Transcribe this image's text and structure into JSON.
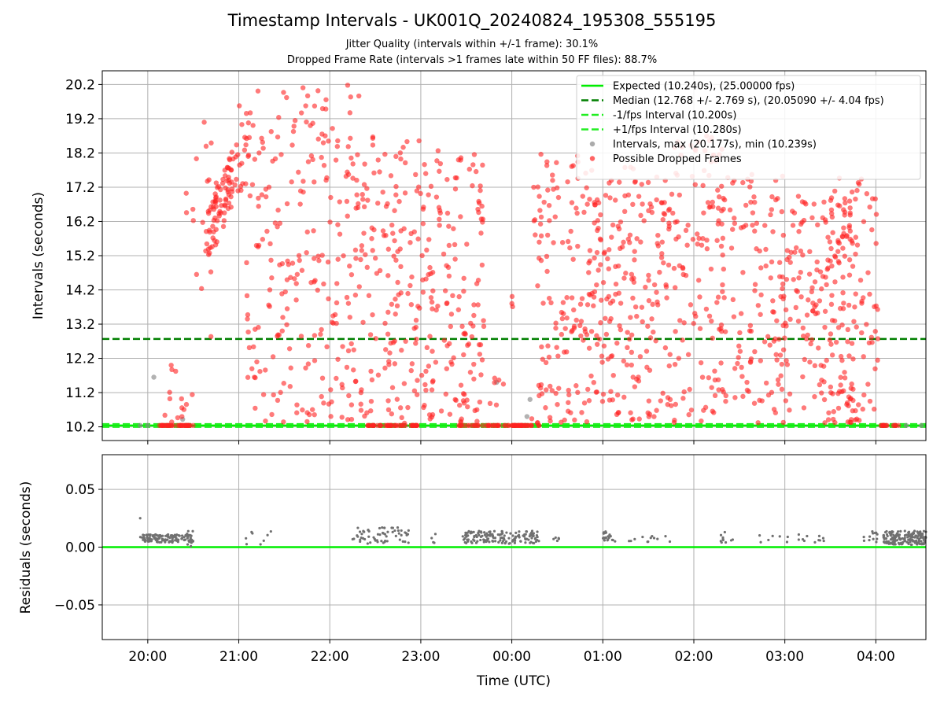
{
  "figure": {
    "title": "Timestamp Intervals - UK001Q_20240824_195308_555195",
    "subtitle_jitter": "Jitter Quality (intervals within +/-1 frame): 30.1%",
    "subtitle_dropped": "Dropped Frame Rate (intervals >1 frames late within 50 FF files): 88.7%"
  },
  "colors": {
    "expected": "#00ee00",
    "median": "#007f00",
    "fps_band": "#22ee22",
    "intervals": "#888888",
    "dropped": "#ff2222",
    "residuals": "#707070",
    "grid": "#b0b0b0"
  },
  "chart_data": [
    {
      "type": "scatter",
      "panel": "top",
      "xlabel": "",
      "ylabel": "Intervals (seconds)",
      "ylim": [
        9.8,
        20.6
      ],
      "yticks": [
        10.2,
        11.2,
        12.2,
        13.2,
        14.2,
        15.2,
        16.2,
        17.2,
        18.2,
        19.2,
        20.2
      ],
      "ytick_labels": [
        "10.2",
        "11.2",
        "12.2",
        "13.2",
        "14.2",
        "15.2",
        "16.2",
        "17.2",
        "18.2",
        "19.2",
        "20.2"
      ],
      "grid": true,
      "legend_position": "top-right",
      "hlines": [
        {
          "name": "Expected (10.240s), (25.00000 fps)",
          "y": 10.24,
          "style": "solid",
          "color": "#00ee00"
        },
        {
          "name": "Median (12.768 +/- 2.769 s), (20.05090 +/- 4.04 fps)",
          "y": 12.768,
          "style": "dashed",
          "color": "#007f00"
        },
        {
          "name": "-1/fps Interval (10.200s)",
          "y": 10.2,
          "style": "dashed",
          "color": "#22ee22"
        },
        {
          "name": "+1/fps Interval (10.280s)",
          "y": 10.28,
          "style": "dashed",
          "color": "#22ee22"
        }
      ],
      "series": [
        {
          "name": "Intervals, max (20.177s), min (10.239s)",
          "marker": "dot",
          "color": "#888888",
          "points": [
            [
              "19:55",
              10.24
            ],
            [
              "20:00",
              10.24
            ],
            [
              "20:04",
              11.65
            ],
            [
              "20:23",
              10.42
            ],
            [
              "23:50",
              11.5
            ],
            [
              "00:10",
              10.5
            ],
            [
              "00:12",
              11.0
            ],
            [
              "04:20",
              10.24
            ],
            [
              "04:30",
              10.24
            ]
          ]
        },
        {
          "name": "Possible Dropped Frames",
          "marker": "dot",
          "color": "#ff2222",
          "segments": [
            {
              "start": "20:05",
              "end": "20:30",
              "density": 34,
              "distribution": "flat",
              "ymin": 10.24,
              "ymax": 10.24
            },
            {
              "start": "20:05",
              "end": "20:30",
              "density": 14,
              "distribution": "uniform",
              "ymin": 10.3,
              "ymax": 12.1
            },
            {
              "start": "20:25",
              "end": "20:50",
              "density": 20,
              "distribution": "uniform",
              "ymin": 12.8,
              "ymax": 19.4
            },
            {
              "start": "20:38",
              "end": "21:00",
              "density": 80,
              "distribution": "ramp",
              "ymin": 15.0,
              "ymax": 18.5
            },
            {
              "start": "21:00",
              "end": "21:08",
              "density": 16,
              "distribution": "uniform",
              "ymin": 17.0,
              "ymax": 19.6
            },
            {
              "start": "21:05",
              "end": "22:20",
              "density": 230,
              "distribution": "uniform",
              "ymin": 10.3,
              "ymax": 20.2
            },
            {
              "start": "22:20",
              "end": "23:00",
              "density": 130,
              "distribution": "uniform",
              "ymin": 10.3,
              "ymax": 18.9
            },
            {
              "start": "22:25",
              "end": "23:00",
              "density": 40,
              "distribution": "flat",
              "ymin": 10.24,
              "ymax": 10.24
            },
            {
              "start": "23:00",
              "end": "23:42",
              "density": 150,
              "distribution": "uniform",
              "ymin": 10.3,
              "ymax": 18.3
            },
            {
              "start": "23:25",
              "end": "00:18",
              "density": 60,
              "distribution": "flat",
              "ymin": 10.24,
              "ymax": 10.24
            },
            {
              "start": "23:45",
              "end": "23:55",
              "density": 6,
              "distribution": "uniform",
              "ymin": 10.5,
              "ymax": 11.8
            },
            {
              "start": "00:00",
              "end": "00:02",
              "density": 3,
              "distribution": "uniform",
              "ymin": 13.3,
              "ymax": 14.9
            },
            {
              "start": "00:13",
              "end": "00:50",
              "density": 120,
              "distribution": "uniform",
              "ymin": 10.3,
              "ymax": 18.2
            },
            {
              "start": "00:50",
              "end": "01:45",
              "density": 210,
              "distribution": "uniform",
              "ymin": 10.3,
              "ymax": 17.8
            },
            {
              "start": "01:45",
              "end": "02:20",
              "density": 110,
              "distribution": "uniform",
              "ymin": 10.3,
              "ymax": 18.7
            },
            {
              "start": "02:15",
              "end": "03:00",
              "density": 130,
              "distribution": "uniform",
              "ymin": 10.3,
              "ymax": 17.6
            },
            {
              "start": "03:00",
              "end": "03:45",
              "density": 150,
              "distribution": "uniform",
              "ymin": 10.3,
              "ymax": 17.0
            },
            {
              "start": "03:30",
              "end": "04:02",
              "density": 100,
              "distribution": "uniform",
              "ymin": 10.3,
              "ymax": 17.5
            },
            {
              "start": "04:02",
              "end": "04:15",
              "density": 14,
              "distribution": "flat",
              "ymin": 10.24,
              "ymax": 10.24
            }
          ]
        }
      ]
    },
    {
      "type": "scatter",
      "panel": "bottom",
      "xlabel": "Time (UTC)",
      "ylabel": "Residuals (seconds)",
      "ylim": [
        -0.08,
        0.08
      ],
      "yticks": [
        -0.05,
        0,
        0.05
      ],
      "ytick_labels": [
        "−0.05",
        "0.00",
        "0.05"
      ],
      "xlim": [
        "19:30",
        "04:33"
      ],
      "xticks": [
        "20:00",
        "21:00",
        "22:00",
        "23:00",
        "00:00",
        "01:00",
        "02:00",
        "03:00",
        "04:00"
      ],
      "grid": true,
      "hlines": [
        {
          "name": "zero",
          "y": 0,
          "style": "solid",
          "color": "#00ee00"
        }
      ],
      "series": [
        {
          "name": "residuals",
          "marker": "dot",
          "color": "#707070",
          "points": [
            [
              "19:55",
              0.025
            ]
          ],
          "segments": [
            {
              "start": "19:55",
              "end": "20:30",
              "density": 120,
              "ymin": 0.004,
              "ymax": 0.011
            },
            {
              "start": "20:25",
              "end": "20:30",
              "density": 10,
              "ymin": 0.0,
              "ymax": 0.016
            },
            {
              "start": "21:03",
              "end": "21:23",
              "density": 8,
              "ymin": 0.002,
              "ymax": 0.014
            },
            {
              "start": "22:15",
              "end": "22:52",
              "density": 60,
              "ymin": 0.003,
              "ymax": 0.017
            },
            {
              "start": "23:07",
              "end": "23:10",
              "density": 4,
              "ymin": 0.002,
              "ymax": 0.012
            },
            {
              "start": "23:27",
              "end": "00:18",
              "density": 150,
              "ymin": 0.003,
              "ymax": 0.014
            },
            {
              "start": "00:27",
              "end": "00:32",
              "density": 5,
              "ymin": 0.005,
              "ymax": 0.009
            },
            {
              "start": "01:00",
              "end": "01:09",
              "density": 20,
              "ymin": 0.004,
              "ymax": 0.014
            },
            {
              "start": "01:14",
              "end": "01:45",
              "density": 12,
              "ymin": 0.004,
              "ymax": 0.01
            },
            {
              "start": "02:17",
              "end": "02:30",
              "density": 10,
              "ymin": 0.004,
              "ymax": 0.013
            },
            {
              "start": "02:43",
              "end": "03:26",
              "density": 18,
              "ymin": 0.004,
              "ymax": 0.011
            },
            {
              "start": "03:52",
              "end": "04:01",
              "density": 12,
              "ymin": 0.004,
              "ymax": 0.014
            },
            {
              "start": "04:05",
              "end": "04:33",
              "density": 170,
              "ymin": 0.002,
              "ymax": 0.014
            }
          ]
        }
      ]
    }
  ]
}
